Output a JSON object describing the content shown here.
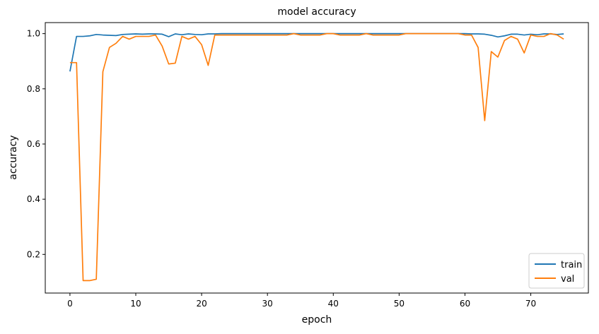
{
  "chart_data": {
    "type": "line",
    "title": "model accuracy",
    "xlabel": "epoch",
    "ylabel": "accuracy",
    "xlim": [
      -3.75,
      78.75
    ],
    "ylim": [
      0.06,
      1.04
    ],
    "xticks": [
      0,
      10,
      20,
      30,
      40,
      50,
      60,
      70
    ],
    "yticks": [
      0.2,
      0.4,
      0.6,
      0.8,
      1.0
    ],
    "ytick_labels": [
      "0.2",
      "0.4",
      "0.6",
      "0.8",
      "1.0"
    ],
    "grid": false,
    "legend_position": "lower-right",
    "x": [
      0,
      1,
      2,
      3,
      4,
      5,
      6,
      7,
      8,
      9,
      10,
      11,
      12,
      13,
      14,
      15,
      16,
      17,
      18,
      19,
      20,
      21,
      22,
      23,
      24,
      25,
      26,
      27,
      28,
      29,
      30,
      31,
      32,
      33,
      34,
      35,
      36,
      37,
      38,
      39,
      40,
      41,
      42,
      43,
      44,
      45,
      46,
      47,
      48,
      49,
      50,
      51,
      52,
      53,
      54,
      55,
      56,
      57,
      58,
      59,
      60,
      61,
      62,
      63,
      64,
      65,
      66,
      67,
      68,
      69,
      70,
      71,
      72,
      73,
      74,
      75
    ],
    "series": [
      {
        "name": "train",
        "color": "#1f77b4",
        "values": [
          0.863,
          0.99,
          0.99,
          0.992,
          0.997,
          0.995,
          0.994,
          0.993,
          0.997,
          0.998,
          0.999,
          0.998,
          0.999,
          0.999,
          0.998,
          0.989,
          0.999,
          0.996,
          0.999,
          0.997,
          0.996,
          0.999,
          0.999,
          1.0,
          1.0,
          1.0,
          1.0,
          1.0,
          1.0,
          1.0,
          1.0,
          1.0,
          1.0,
          1.0,
          1.0,
          1.0,
          1.0,
          1.0,
          1.0,
          1.0,
          1.0,
          1.0,
          1.0,
          1.0,
          1.0,
          1.0,
          1.0,
          1.0,
          1.0,
          1.0,
          1.0,
          1.0,
          1.0,
          1.0,
          1.0,
          1.0,
          1.0,
          1.0,
          1.0,
          1.0,
          1.0,
          0.999,
          0.999,
          0.998,
          0.994,
          0.988,
          0.992,
          0.998,
          0.998,
          0.995,
          0.998,
          0.996,
          0.999,
          0.999,
          0.997,
          0.999
        ]
      },
      {
        "name": "val",
        "color": "#ff7f0e",
        "values": [
          0.895,
          0.895,
          0.105,
          0.105,
          0.11,
          0.862,
          0.95,
          0.965,
          0.99,
          0.98,
          0.99,
          0.99,
          0.99,
          0.995,
          0.955,
          0.89,
          0.893,
          0.99,
          0.98,
          0.99,
          0.96,
          0.885,
          0.995,
          0.995,
          0.995,
          0.995,
          0.995,
          0.995,
          0.995,
          0.995,
          0.995,
          0.995,
          0.995,
          0.995,
          1.0,
          0.995,
          0.995,
          0.995,
          0.995,
          1.0,
          1.0,
          0.995,
          0.995,
          0.995,
          0.995,
          1.0,
          0.995,
          0.995,
          0.995,
          0.995,
          0.995,
          1.0,
          1.0,
          1.0,
          1.0,
          1.0,
          1.0,
          1.0,
          1.0,
          1.0,
          0.995,
          0.995,
          0.95,
          0.685,
          0.935,
          0.915,
          0.975,
          0.99,
          0.98,
          0.93,
          0.995,
          0.99,
          0.99,
          1.0,
          0.995,
          0.98
        ]
      }
    ]
  }
}
